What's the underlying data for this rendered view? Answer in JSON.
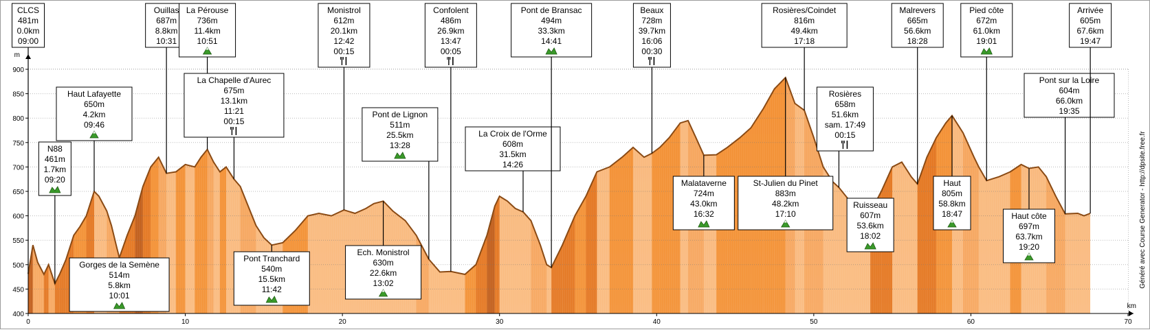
{
  "chart_data": {
    "type": "area",
    "ylabel": "m",
    "xlabel": "km",
    "xlim": [
      0,
      70
    ],
    "ylim": [
      400,
      900
    ],
    "xticks": [
      0,
      10,
      20,
      30,
      40,
      50,
      60,
      70
    ],
    "yticks": [
      400,
      450,
      500,
      550,
      600,
      650,
      700,
      750,
      800,
      850,
      900
    ],
    "grid": "dotted",
    "colors": {
      "fill_light": "#f8b77a",
      "fill_dark": "#c05a10",
      "outline": "#8a4a14"
    },
    "credit": "Généré avec Course Generator - http://dpsite.free.fr",
    "profile": [
      [
        0.0,
        481
      ],
      [
        0.3,
        540
      ],
      [
        0.6,
        505
      ],
      [
        1.0,
        480
      ],
      [
        1.3,
        500
      ],
      [
        1.7,
        461
      ],
      [
        2.0,
        480
      ],
      [
        2.4,
        510
      ],
      [
        2.9,
        560
      ],
      [
        3.3,
        578
      ],
      [
        3.7,
        600
      ],
      [
        4.2,
        650
      ],
      [
        4.5,
        640
      ],
      [
        5.0,
        610
      ],
      [
        5.3,
        580
      ],
      [
        5.6,
        540
      ],
      [
        5.8,
        514
      ],
      [
        6.3,
        560
      ],
      [
        6.8,
        600
      ],
      [
        7.3,
        660
      ],
      [
        7.8,
        700
      ],
      [
        8.3,
        720
      ],
      [
        8.8,
        687
      ],
      [
        9.4,
        690
      ],
      [
        10.0,
        705
      ],
      [
        10.6,
        700
      ],
      [
        11.0,
        720
      ],
      [
        11.4,
        736
      ],
      [
        11.8,
        710
      ],
      [
        12.2,
        690
      ],
      [
        12.6,
        700
      ],
      [
        13.1,
        675
      ],
      [
        13.5,
        660
      ],
      [
        14.0,
        620
      ],
      [
        14.5,
        580
      ],
      [
        15.0,
        555
      ],
      [
        15.5,
        540
      ],
      [
        16.2,
        545
      ],
      [
        17.0,
        570
      ],
      [
        17.8,
        600
      ],
      [
        18.5,
        605
      ],
      [
        19.3,
        600
      ],
      [
        20.1,
        612
      ],
      [
        20.8,
        605
      ],
      [
        21.5,
        615
      ],
      [
        22.0,
        625
      ],
      [
        22.6,
        630
      ],
      [
        23.2,
        610
      ],
      [
        24.0,
        590
      ],
      [
        24.7,
        560
      ],
      [
        25.5,
        511
      ],
      [
        26.2,
        485
      ],
      [
        26.9,
        486
      ],
      [
        27.8,
        480
      ],
      [
        28.5,
        500
      ],
      [
        29.2,
        560
      ],
      [
        29.7,
        620
      ],
      [
        30.0,
        640
      ],
      [
        30.5,
        630
      ],
      [
        31.0,
        615
      ],
      [
        31.5,
        608
      ],
      [
        32.0,
        590
      ],
      [
        32.6,
        540
      ],
      [
        33.0,
        500
      ],
      [
        33.3,
        494
      ],
      [
        34.0,
        540
      ],
      [
        34.8,
        600
      ],
      [
        35.5,
        640
      ],
      [
        36.2,
        690
      ],
      [
        37.0,
        700
      ],
      [
        37.8,
        720
      ],
      [
        38.5,
        740
      ],
      [
        39.2,
        720
      ],
      [
        39.7,
        728
      ],
      [
        40.2,
        740
      ],
      [
        40.8,
        760
      ],
      [
        41.5,
        790
      ],
      [
        42.0,
        795
      ],
      [
        42.5,
        760
      ],
      [
        43.0,
        724
      ],
      [
        43.8,
        725
      ],
      [
        44.5,
        740
      ],
      [
        45.3,
        760
      ],
      [
        46.0,
        780
      ],
      [
        46.8,
        820
      ],
      [
        47.5,
        860
      ],
      [
        48.2,
        883
      ],
      [
        48.8,
        830
      ],
      [
        49.4,
        816
      ],
      [
        50.0,
        760
      ],
      [
        50.6,
        700
      ],
      [
        51.2,
        670
      ],
      [
        51.6,
        658
      ],
      [
        52.3,
        630
      ],
      [
        53.0,
        620
      ],
      [
        53.6,
        607
      ],
      [
        54.3,
        650
      ],
      [
        55.0,
        700
      ],
      [
        55.6,
        710
      ],
      [
        56.2,
        680
      ],
      [
        56.6,
        665
      ],
      [
        57.2,
        720
      ],
      [
        57.8,
        760
      ],
      [
        58.4,
        790
      ],
      [
        58.8,
        805
      ],
      [
        59.5,
        770
      ],
      [
        60.2,
        720
      ],
      [
        60.5,
        700
      ],
      [
        61.0,
        672
      ],
      [
        61.8,
        680
      ],
      [
        62.5,
        690
      ],
      [
        63.2,
        705
      ],
      [
        63.7,
        697
      ],
      [
        64.3,
        700
      ],
      [
        64.8,
        680
      ],
      [
        65.4,
        640
      ],
      [
        66.0,
        604
      ],
      [
        66.8,
        605
      ],
      [
        67.2,
        600
      ],
      [
        67.6,
        605
      ]
    ],
    "waypoints": [
      {
        "name": "CLCS",
        "alt": "481m",
        "dist": "0.0km",
        "time": "09:00",
        "km": 0.0,
        "ele": 481,
        "side": "top",
        "icon": "none"
      },
      {
        "name": "N88",
        "alt": "461m",
        "dist": "1.7km",
        "time": "09:20",
        "km": 1.7,
        "ele": 461,
        "side": "top",
        "icon": "climb"
      },
      {
        "name": "Haut Lafayette",
        "alt": "650m",
        "dist": "4.2km",
        "time": "09:46",
        "km": 4.2,
        "ele": 650,
        "side": "top",
        "icon": "summit"
      },
      {
        "name": "Gorges de la Semène",
        "alt": "514m",
        "dist": "5.8km",
        "time": "10:01",
        "km": 5.8,
        "ele": 514,
        "side": "bottom",
        "icon": "climb"
      },
      {
        "name": "Ouillas",
        "alt": "687m",
        "dist": "8.8km",
        "time": "10:31",
        "km": 8.8,
        "ele": 687,
        "side": "top",
        "icon": "none"
      },
      {
        "name": "La Pérouse",
        "alt": "736m",
        "dist": "11.4km",
        "time": "10:51",
        "km": 11.4,
        "ele": 736,
        "side": "top",
        "icon": "summit"
      },
      {
        "name": "La Chapelle d'Aurec",
        "alt": "675m",
        "dist": "13.1km",
        "time": "11:21",
        "extra": "00:15",
        "km": 13.1,
        "ele": 675,
        "side": "top",
        "icon": "food"
      },
      {
        "name": "Pont Tranchard",
        "alt": "540m",
        "dist": "15.5km",
        "time": "11:42",
        "km": 15.5,
        "ele": 540,
        "side": "bottom",
        "icon": "climb"
      },
      {
        "name": "Monistrol",
        "alt": "612m",
        "dist": "20.1km",
        "time": "12:42",
        "extra": "00:15",
        "km": 20.1,
        "ele": 612,
        "side": "top",
        "icon": "food"
      },
      {
        "name": "Ech. Monistrol",
        "alt": "630m",
        "dist": "22.6km",
        "time": "13:02",
        "km": 22.6,
        "ele": 630,
        "side": "bottom",
        "icon": "summit"
      },
      {
        "name": "Pont de Lignon",
        "alt": "511m",
        "dist": "25.5km",
        "time": "13:28",
        "km": 25.5,
        "ele": 511,
        "side": "top",
        "icon": "climb"
      },
      {
        "name": "Confolent",
        "alt": "486m",
        "dist": "26.9km",
        "time": "13:47",
        "extra": "00:05",
        "km": 26.9,
        "ele": 486,
        "side": "top",
        "icon": "food"
      },
      {
        "name": "La Croix de l'Orme",
        "alt": "608m",
        "dist": "31.5km",
        "time": "14:26",
        "km": 31.5,
        "ele": 608,
        "side": "top",
        "icon": "none"
      },
      {
        "name": "Pont de Bransac",
        "alt": "494m",
        "dist": "33.3km",
        "time": "14:41",
        "km": 33.3,
        "ele": 494,
        "side": "top",
        "icon": "climb"
      },
      {
        "name": "Beaux",
        "alt": "728m",
        "dist": "39.7km",
        "time": "16:06",
        "extra": "00:30",
        "km": 39.7,
        "ele": 728,
        "side": "top",
        "icon": "food"
      },
      {
        "name": "Malataverne",
        "alt": "724m",
        "dist": "43.0km",
        "time": "16:32",
        "km": 43.0,
        "ele": 724,
        "side": "bottom",
        "icon": "climb"
      },
      {
        "name": "St-Julien du Pinet",
        "alt": "883m",
        "dist": "48.2km",
        "time": "17:10",
        "km": 48.2,
        "ele": 883,
        "side": "bottom",
        "icon": "summit"
      },
      {
        "name": "Rosières/Coindet",
        "alt": "816m",
        "dist": "49.4km",
        "time": "17:18",
        "km": 49.4,
        "ele": 816,
        "side": "top",
        "icon": "none"
      },
      {
        "name": "Rosières",
        "alt": "658m",
        "dist": "51.6km",
        "time": "sam. 17:49",
        "extra": "00:15",
        "km": 51.6,
        "ele": 658,
        "side": "top",
        "icon": "food"
      },
      {
        "name": "Ruisseau",
        "alt": "607m",
        "dist": "53.6km",
        "time": "18:02",
        "km": 53.6,
        "ele": 607,
        "side": "bottom",
        "icon": "climb"
      },
      {
        "name": "Malrevers",
        "alt": "665m",
        "dist": "56.6km",
        "time": "18:28",
        "km": 56.6,
        "ele": 665,
        "side": "top",
        "icon": "none"
      },
      {
        "name": "Haut",
        "alt": "805m",
        "dist": "58.8km",
        "time": "18:47",
        "km": 58.8,
        "ele": 805,
        "side": "bottom",
        "icon": "summit"
      },
      {
        "name": "Pied côte",
        "alt": "672m",
        "dist": "61.0km",
        "time": "19:01",
        "km": 61.0,
        "ele": 672,
        "side": "top",
        "icon": "climb"
      },
      {
        "name": "Haut côte",
        "alt": "697m",
        "dist": "63.7km",
        "time": "19:20",
        "km": 63.7,
        "ele": 697,
        "side": "bottom",
        "icon": "summit"
      },
      {
        "name": "Pont sur la Loire",
        "alt": "604m",
        "dist": "66.0km",
        "time": "19:35",
        "km": 66.0,
        "ele": 604,
        "side": "top",
        "icon": "none"
      },
      {
        "name": "Arrivée",
        "alt": "605m",
        "dist": "67.6km",
        "time": "19:47",
        "km": 67.6,
        "ele": 605,
        "side": "top",
        "icon": "none"
      }
    ]
  }
}
